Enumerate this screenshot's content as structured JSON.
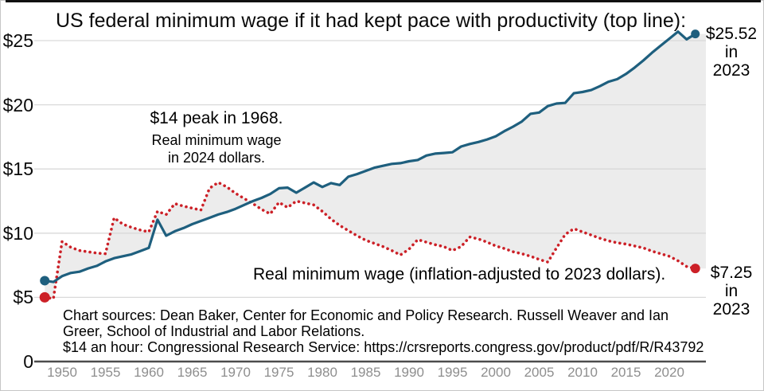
{
  "title": "US federal minimum wage if it had kept pace with productivity (top line):",
  "annotations": {
    "peak": {
      "line1": "$14 peak in 1968.",
      "line2": "Real minimum wage",
      "line3": "in 2024 dollars."
    },
    "real_wage": "Real minimum wage (inflation-adjusted to 2023 dollars).",
    "end_top": {
      "value": "$25.52",
      "mid": "in",
      "year": "2023"
    },
    "end_bottom": {
      "value": "$7.25",
      "mid": "in",
      "year": "2023"
    },
    "sources": {
      "line1": "Chart sources: Dean Baker, Center for Economic and Policy Research. Russell Weaver and Ian",
      "line2": "Greer, School of Industrial and Labor Relations.",
      "line3": "$14 an hour: Congressional Research Service: https://crsreports.congress.gov/product/pdf/R/R43792"
    }
  },
  "colors": {
    "productivity_line": "#1e5f7e",
    "real_wage_line": "#cc2027",
    "fill_between": "#ececec",
    "gridline": "#d9d9d9",
    "axis_line": "#4c4c4c",
    "x_tick_label": "#8e8e8e",
    "text": "#000000"
  },
  "chart_data": {
    "type": "line",
    "title": "US federal minimum wage if it had kept pace with productivity (top line):",
    "grid": true,
    "ylim": [
      0,
      26.5
    ],
    "xlim": [
      1946,
      2024.5
    ],
    "y_ticks": {
      "values": [
        25,
        20,
        15,
        10,
        5,
        0
      ],
      "labels": [
        "$25",
        "$20",
        "$15",
        "$10",
        "$5",
        "0"
      ]
    },
    "x_ticks": [
      1950,
      1955,
      1960,
      1965,
      1970,
      1975,
      1980,
      1985,
      1990,
      1995,
      2000,
      2005,
      2010,
      2015,
      2020
    ],
    "x": [
      1948,
      1949,
      1950,
      1951,
      1952,
      1953,
      1954,
      1955,
      1956,
      1957,
      1958,
      1959,
      1960,
      1961,
      1962,
      1963,
      1964,
      1965,
      1966,
      1967,
      1968,
      1969,
      1970,
      1971,
      1972,
      1973,
      1974,
      1975,
      1976,
      1977,
      1978,
      1979,
      1980,
      1981,
      1982,
      1983,
      1984,
      1985,
      1986,
      1987,
      1988,
      1989,
      1990,
      1991,
      1992,
      1993,
      1994,
      1995,
      1996,
      1997,
      1998,
      1999,
      2000,
      2001,
      2002,
      2003,
      2004,
      2005,
      2006,
      2007,
      2008,
      2009,
      2010,
      2011,
      2012,
      2013,
      2014,
      2015,
      2016,
      2017,
      2018,
      2019,
      2020,
      2021,
      2022,
      2023
    ],
    "series": [
      {
        "name": "Minimum wage if it had kept pace with productivity (2023 dollars)",
        "style": "solid",
        "color": "#1e5f7e",
        "values": [
          6.3,
          6.2,
          6.65,
          6.9,
          7.0,
          7.25,
          7.45,
          7.8,
          8.05,
          8.2,
          8.35,
          8.6,
          8.85,
          11.05,
          9.8,
          10.15,
          10.4,
          10.7,
          10.95,
          11.2,
          11.45,
          11.65,
          11.9,
          12.2,
          12.5,
          12.75,
          13.05,
          13.5,
          13.55,
          13.15,
          13.55,
          13.95,
          13.6,
          13.9,
          13.75,
          14.4,
          14.6,
          14.85,
          15.1,
          15.25,
          15.4,
          15.45,
          15.6,
          15.7,
          16.05,
          16.2,
          16.25,
          16.3,
          16.75,
          16.95,
          17.1,
          17.3,
          17.55,
          17.95,
          18.3,
          18.7,
          19.3,
          19.4,
          19.9,
          20.1,
          20.15,
          20.9,
          21.0,
          21.15,
          21.45,
          21.8,
          22.0,
          22.4,
          22.9,
          23.45,
          24.05,
          24.6,
          25.15,
          25.7,
          25.1,
          25.52
        ]
      },
      {
        "name": "Real minimum wage (inflation-adjusted to 2023 dollars)",
        "style": "dotted",
        "color": "#cc2027",
        "values": [
          5.0,
          4.9,
          9.35,
          8.9,
          8.65,
          8.55,
          8.45,
          8.4,
          11.2,
          10.7,
          10.45,
          10.25,
          10.1,
          11.7,
          11.45,
          12.3,
          12.1,
          11.95,
          11.8,
          13.5,
          13.95,
          13.6,
          13.1,
          12.7,
          12.3,
          11.85,
          11.5,
          12.4,
          12.0,
          12.5,
          12.35,
          12.2,
          11.7,
          11.1,
          10.6,
          10.2,
          9.8,
          9.45,
          9.2,
          8.95,
          8.65,
          8.3,
          8.75,
          9.5,
          9.3,
          9.1,
          8.95,
          8.65,
          8.95,
          9.7,
          9.55,
          9.3,
          9.0,
          8.8,
          8.55,
          8.4,
          8.2,
          7.95,
          7.75,
          8.85,
          9.9,
          10.35,
          10.1,
          9.85,
          9.6,
          9.4,
          9.25,
          9.15,
          9.0,
          8.85,
          8.6,
          8.4,
          8.2,
          7.85,
          7.4,
          7.25
        ]
      }
    ],
    "endpoint_labels": {
      "productivity": "$25.52 in 2023",
      "real": "$7.25 in 2023"
    }
  }
}
